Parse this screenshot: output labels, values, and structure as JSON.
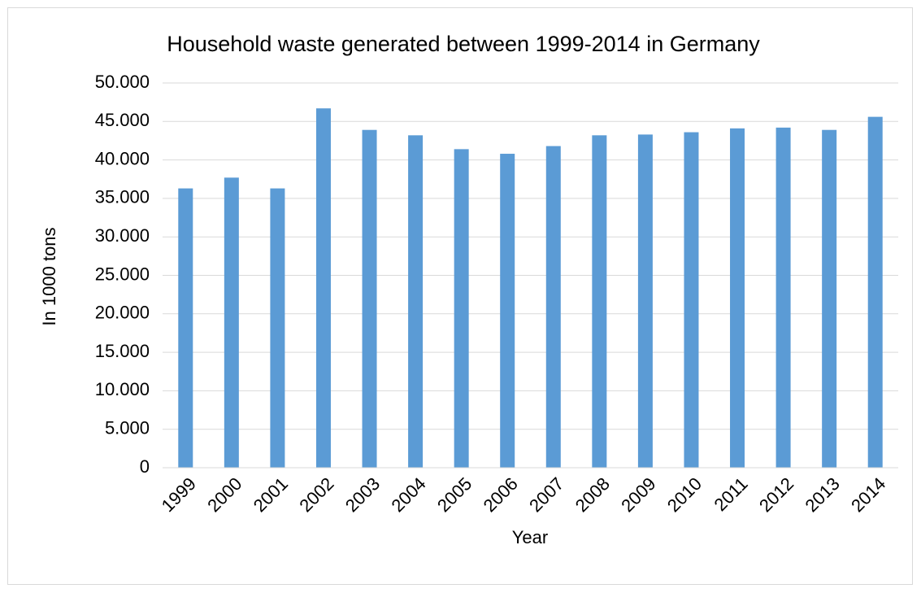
{
  "chart_data": {
    "type": "bar",
    "title": "Household waste generated between 1999-2014 in Germany",
    "x_label": "Year",
    "y_label": "In 1000 tons",
    "categories": [
      "1999",
      "2000",
      "2001",
      "2002",
      "2003",
      "2004",
      "2005",
      "2006",
      "2007",
      "2008",
      "2009",
      "2010",
      "2011",
      "2012",
      "2013",
      "2014"
    ],
    "values": [
      36300,
      37700,
      36300,
      46700,
      43900,
      43200,
      41400,
      40800,
      41800,
      43200,
      43300,
      43600,
      44100,
      44200,
      43900,
      45600
    ],
    "color": "#5b9bd5",
    "ylim": [
      0,
      50000
    ],
    "yticks": [
      0,
      {
        "value": 5000,
        "label": "5.000"
      },
      {
        "value": 10000,
        "label": "10.000"
      },
      {
        "value": 15000,
        "label": "15.000"
      },
      {
        "value": 20000,
        "label": "20.000"
      },
      {
        "value": 25000,
        "label": "25.000"
      },
      {
        "value": 30000,
        "label": "30.000"
      },
      {
        "value": 35000,
        "label": "35.000"
      },
      {
        "value": 40000,
        "label": "40.000"
      },
      {
        "value": 45000,
        "label": "45.000"
      },
      {
        "value": 50000,
        "label": "50.000"
      }
    ],
    "grid": true
  }
}
